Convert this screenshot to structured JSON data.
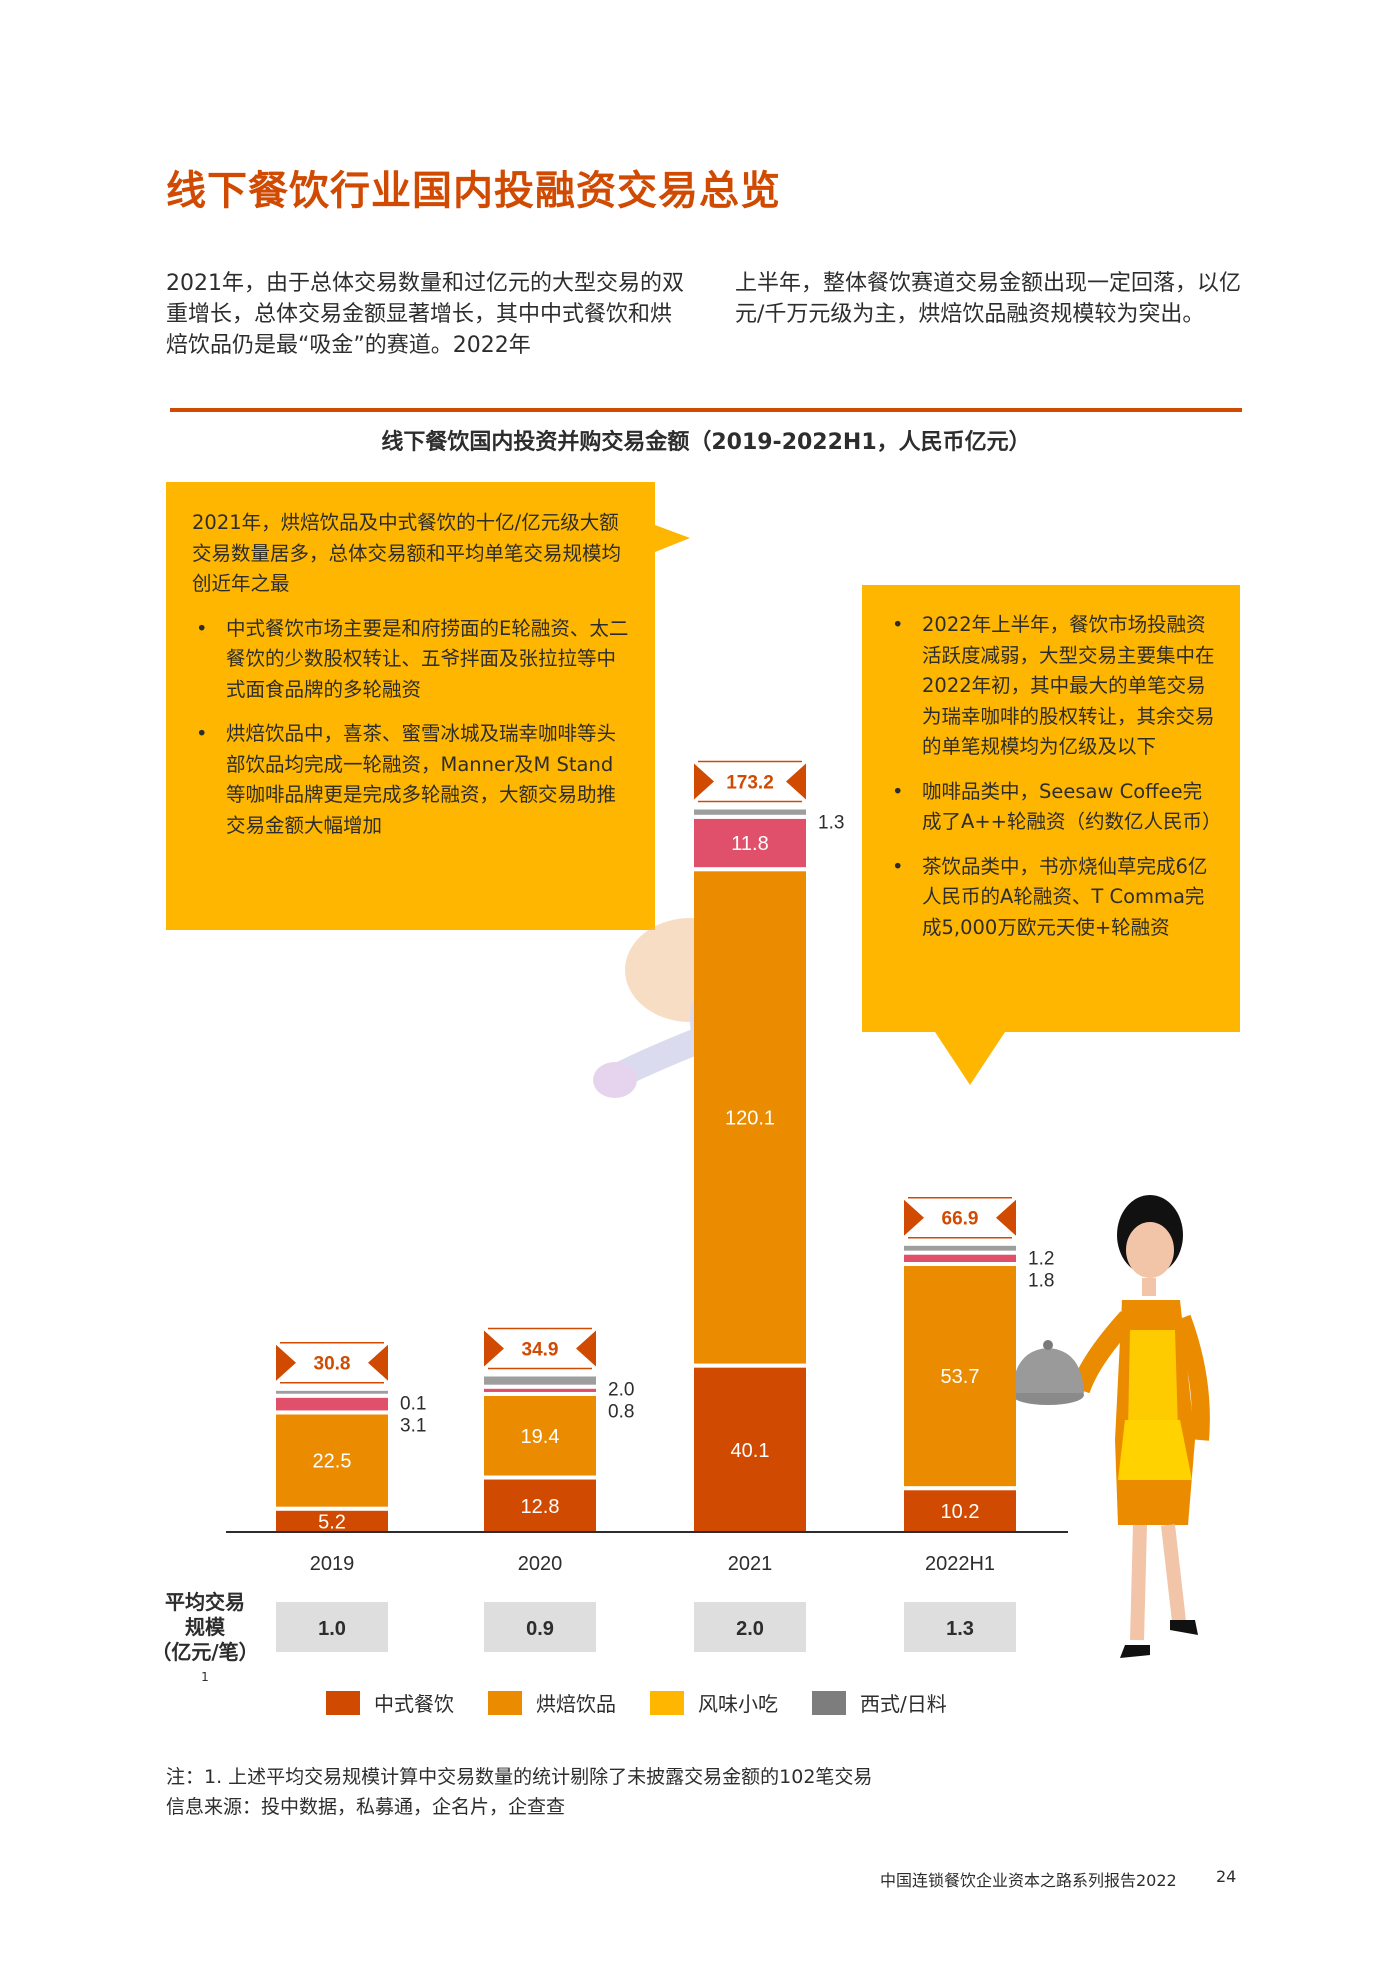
{
  "page": {
    "title": "线下餐饮行业国内投融资交易总览",
    "intro_left": "2021年，由于总体交易数量和过亿元的大型交易的双重增长，总体交易金额显著增长，其中中式餐饮和烘焙饮品仍是最“吸金”的赛道。2022年",
    "intro_right": "上半年，整体餐饮赛道交易金额出现一定回落，以亿元/千万元级为主，烘焙饮品融资规模较为突出。",
    "chart_title": "线下餐饮国内投资并购交易金额（2019-2022H1，人民币亿元）",
    "callout_left": {
      "lead": "2021年，烘焙饮品及中式餐饮的十亿/亿元级大额交易数量居多，总体交易额和平均单笔交易规模均创近年之最",
      "bullets": [
        "中式餐饮市场主要是和府捞面的E轮融资、太二餐饮的少数股权转让、五爷拌面及张拉拉等中式面食品牌的多轮融资",
        "烘焙饮品中，喜茶、蜜雪冰城及瑞幸咖啡等头部饮品均完成一轮融资，Manner及M Stand等咖啡品牌更是完成多轮融资，大额交易助推交易金额大幅增加"
      ]
    },
    "callout_right": {
      "bullets": [
        "2022年上半年，餐饮市场投融资活跃度减弱，大型交易主要集中在2022年初，其中最大的单笔交易为瑞幸咖啡的股权转让，其余交易的单笔规模均为亿级及以下",
        "咖啡品类中，Seesaw Coffee完成了A++轮融资（约数亿人民币）",
        "茶饮品类中，书亦烧仙草完成6亿人民币的A轮融资、T Comma完成5,000万欧元天使+轮融资"
      ]
    },
    "avg_label_line1": "平均交易",
    "avg_label_line2": "规模",
    "avg_label_line3": "（亿元/笔）",
    "avg_label_sup": "1",
    "note_line1": "注：1. 上述平均交易规模计算中交易数量的统计剔除了未披露交易金额的102笔交易",
    "note_line2": "信息来源：投中数据，私募通，企名片，企查查",
    "footer_report": "中国连锁餐饮企业资本之路系列报告2022",
    "footer_page": "24"
  },
  "chart_data": {
    "type": "bar",
    "stacked": true,
    "categories": [
      "2019",
      "2020",
      "2021",
      "2022H1"
    ],
    "series": [
      {
        "name": "中式餐饮",
        "color": "#d04a02",
        "values": [
          5.2,
          12.8,
          40.1,
          10.2
        ],
        "labels": [
          "5.2",
          "12.8",
          "40.1",
          "10.2"
        ]
      },
      {
        "name": "烘焙饮品",
        "color": "#eb8c00",
        "values": [
          22.5,
          19.4,
          120.1,
          53.7
        ],
        "labels": [
          "22.5",
          "19.4",
          "120.1",
          "53.7"
        ]
      },
      {
        "name": "风味小吃",
        "color": "#ffb600",
        "values": [
          3.1,
          0.8,
          11.8,
          1.8
        ],
        "labels": [
          "3.1",
          "0.8",
          "11.8",
          "1.8"
        ]
      },
      {
        "name": "西式/日料",
        "color": "#7d7d7d",
        "values": [
          0.1,
          2.0,
          1.3,
          1.2
        ],
        "labels": [
          "0.1",
          "2.0",
          "1.3",
          "1.2"
        ]
      }
    ],
    "segment_colors_drawn": [
      "#d04a02",
      "#eb8c00",
      "#e0506b",
      "#9e9e9e"
    ],
    "totals": [
      "30.8",
      "34.9",
      "173.2",
      "66.9"
    ],
    "average_deal_size": [
      "1.0",
      "0.9",
      "2.0",
      "1.3"
    ],
    "ylim": [
      0,
      180
    ],
    "legend_position": "bottom"
  }
}
